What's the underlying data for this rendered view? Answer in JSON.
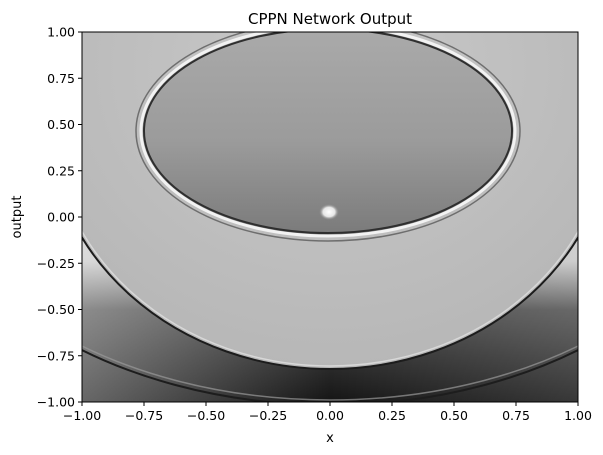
{
  "chart_data": {
    "type": "heatmap",
    "title": "CPPN Network Output",
    "xlabel": "x",
    "ylabel": "output",
    "xlim": [
      -1.0,
      1.0
    ],
    "ylim": [
      -1.0,
      1.0
    ],
    "grid": false,
    "colormap": "gray",
    "x_ticks": [
      -1.0,
      -0.75,
      -0.5,
      -0.25,
      0.0,
      0.25,
      0.5,
      0.75,
      1.0
    ],
    "y_ticks": [
      -1.0,
      -0.75,
      -0.5,
      -0.25,
      0.0,
      0.25,
      0.5,
      0.75,
      1.0
    ],
    "x_tick_labels": [
      "−1.00",
      "−0.75",
      "−0.50",
      "−0.25",
      "0.00",
      "0.25",
      "0.50",
      "0.75",
      "1.00"
    ],
    "y_tick_labels": [
      "−1.00",
      "−0.75",
      "−0.50",
      "−0.25",
      "0.00",
      "0.25",
      "0.50",
      "0.75",
      "1.00"
    ],
    "features": {
      "inner_disc": {
        "center": [
          -0.01,
          0.47
        ],
        "radii": [
          0.75,
          0.56
        ]
      },
      "outer_ring": {
        "center": [
          0.0,
          0.47
        ],
        "radii": [
          1.07,
          0.88
        ]
      },
      "bright_spot": {
        "center": [
          0.0,
          0.02
        ],
        "radius": 0.03
      }
    }
  },
  "colors": {
    "background": "#ffffff",
    "axis": "#000000"
  }
}
